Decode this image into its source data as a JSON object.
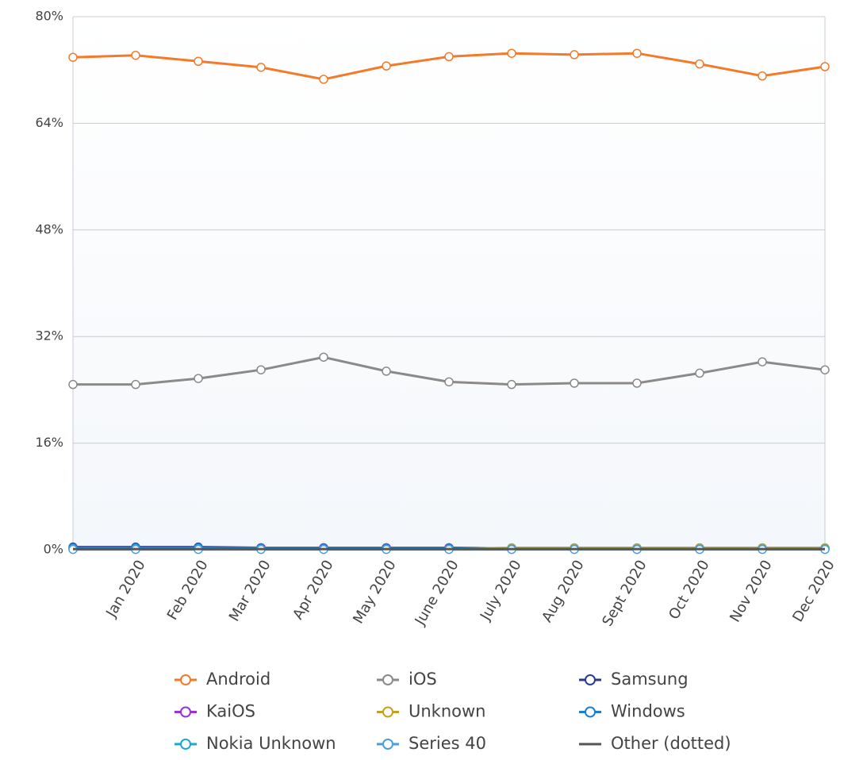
{
  "chart_data": {
    "type": "line",
    "categories": [
      null,
      "Jan 2020",
      "Feb 2020",
      "Mar 2020",
      "Apr 2020",
      "May 2020",
      "June 2020",
      "July 2020",
      "Aug 2020",
      "Sept 2020",
      "Oct 2020",
      "Nov 2020",
      "Dec 2020"
    ],
    "series": [
      {
        "name": "Android",
        "color": "#f47a2a",
        "values": [
          73.9,
          74.2,
          73.3,
          72.4,
          70.6,
          72.6,
          74.0,
          74.5,
          74.3,
          74.5,
          72.9,
          71.1,
          72.5
        ]
      },
      {
        "name": "iOS",
        "color": "#8a8a8a",
        "values": [
          24.8,
          24.8,
          25.7,
          27.0,
          28.9,
          26.8,
          25.2,
          24.8,
          25.0,
          25.0,
          26.5,
          28.2,
          27.0
        ]
      },
      {
        "name": "Samsung",
        "color": "#2b3b8f",
        "values": [
          0.4,
          0.4,
          0.4,
          0.3,
          0.3,
          0.3,
          0.3,
          0.2,
          0.2,
          0.2,
          0.2,
          0.2,
          0.2
        ]
      },
      {
        "name": "KaiOS",
        "color": "#9b30d9",
        "values": [
          0.2,
          0.2,
          0.2,
          0.3,
          0.3,
          0.3,
          0.3,
          0.1,
          0.1,
          0.1,
          0.1,
          0.1,
          0.1
        ]
      },
      {
        "name": "Unknown",
        "color": "#c8a020",
        "values": [
          0.1,
          0.1,
          0.1,
          0.1,
          0.1,
          0.1,
          0.1,
          0.3,
          0.3,
          0.3,
          0.3,
          0.3,
          0.3
        ]
      },
      {
        "name": "Windows",
        "color": "#1a7fd4",
        "values": [
          0.3,
          0.3,
          0.3,
          0.2,
          0.2,
          0.2,
          0.2,
          0.1,
          0.1,
          0.1,
          0.1,
          0.1,
          0.1
        ]
      },
      {
        "name": "Nokia Unknown",
        "color": "#1aa9d4",
        "values": [
          0.1,
          0.1,
          0.1,
          0.1,
          0.1,
          0.1,
          0.1,
          0.1,
          0.1,
          0.1,
          0.1,
          0.1,
          0.1
        ]
      },
      {
        "name": "Series 40",
        "color": "#4a9ee0",
        "values": [
          0.05,
          0.05,
          0.05,
          0.05,
          0.05,
          0.05,
          0.05,
          0.05,
          0.05,
          0.05,
          0.05,
          0.05,
          0.05
        ]
      },
      {
        "name": "Other (dotted)",
        "color": "#555555",
        "marker": false,
        "values": [
          0.1,
          0.1,
          0.1,
          0.1,
          0.1,
          0.1,
          0.1,
          0.1,
          0.1,
          0.1,
          0.1,
          0.1,
          0.1
        ]
      }
    ],
    "ylim": [
      0,
      80
    ],
    "yticks": [
      {
        "value": 0,
        "label": "0%"
      },
      {
        "value": 16,
        "label": "16%"
      },
      {
        "value": 32,
        "label": "32%"
      },
      {
        "value": 48,
        "label": "48%"
      },
      {
        "value": 64,
        "label": "64%"
      },
      {
        "value": 80,
        "label": "80%"
      }
    ],
    "grid": true
  }
}
